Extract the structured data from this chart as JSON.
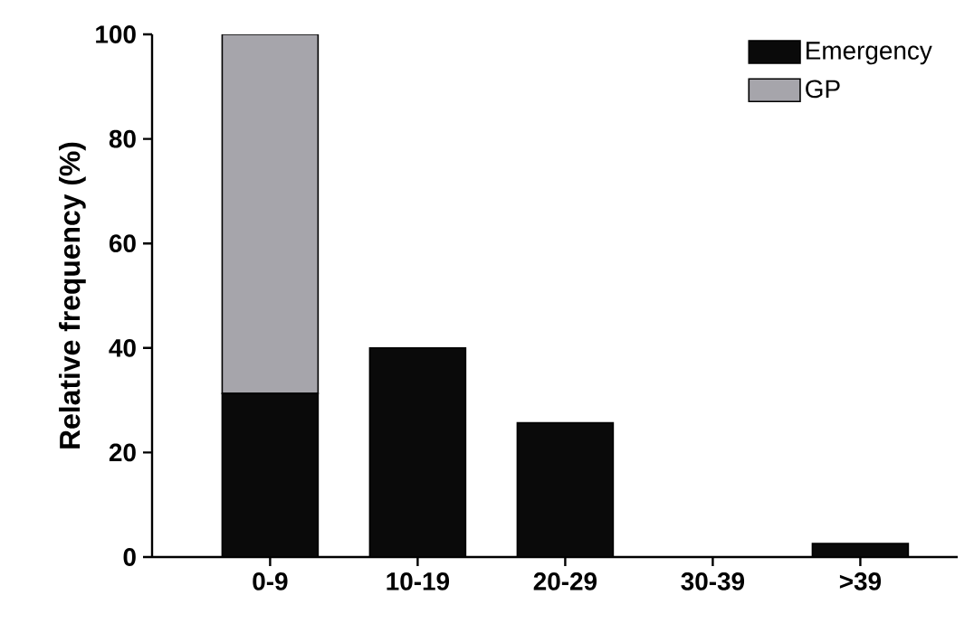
{
  "chart_data": {
    "type": "bar",
    "ylabel": "Relative frequency (%)",
    "categories": [
      "0-9",
      "10-19",
      "20-29",
      "30-39",
      ">39"
    ],
    "stacked": true,
    "legend": "top right",
    "ylim": [
      0,
      100
    ],
    "yticks": [
      0,
      20,
      40,
      60,
      80,
      100
    ],
    "series": [
      {
        "name": "Emergency",
        "color": "#0a0a0a",
        "values": [
          31.3,
          40,
          25.7,
          0,
          2.6
        ]
      },
      {
        "name": "GP",
        "color": "#a6a5ab",
        "values": [
          68.7,
          0,
          0,
          0,
          0
        ]
      }
    ]
  }
}
